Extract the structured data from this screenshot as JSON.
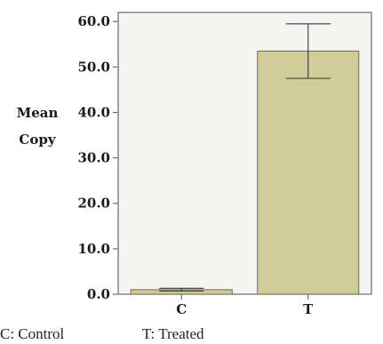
{
  "chart_data": {
    "type": "bar",
    "categories": [
      "C",
      "T"
    ],
    "values": [
      1.0,
      53.5
    ],
    "error_bars": [
      {
        "low": 0.7,
        "high": 1.3
      },
      {
        "low": 47.5,
        "high": 59.5
      }
    ],
    "ylabel_lines": [
      "Mean",
      "Copy"
    ],
    "yticks": [
      "0.0",
      "10.0",
      "20.0",
      "30.0",
      "40.0",
      "50.0",
      "60.0"
    ],
    "ylim": [
      0,
      62
    ],
    "grid": false,
    "bar_color": "#d0cc98",
    "bar_edge_color": "#6f6c4e",
    "axis_color": "#6b6b6b",
    "legend_notes": [
      "C: Control",
      "T: Treated"
    ]
  }
}
